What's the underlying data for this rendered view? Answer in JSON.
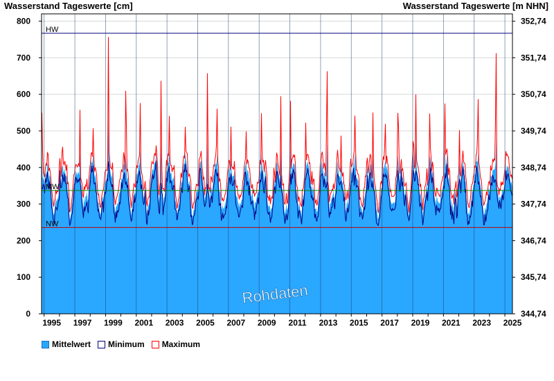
{
  "chart_data": {
    "type": "area",
    "ylabel_left": "Wasserstand Tageswerte [cm]",
    "ylabel_right": "Wasserstand Tageswerte [m NHN]",
    "ylim": [
      0,
      820
    ],
    "yticks_left": [
      "0",
      "100",
      "200",
      "300",
      "400",
      "500",
      "600",
      "700",
      "800"
    ],
    "yticks_right": [
      "344,74",
      "345,74",
      "346,74",
      "347,74",
      "348,74",
      "349,74",
      "350,74",
      "351,74",
      "352,74"
    ],
    "xticks": [
      "1995",
      "1997",
      "1999",
      "2001",
      "2003",
      "2005",
      "2007",
      "2009",
      "2011",
      "2013",
      "2015",
      "2017",
      "2019",
      "2021",
      "2023",
      "2025"
    ],
    "x_range": [
      "1994-11-01",
      "2025-06-30"
    ],
    "reference_lines": [
      {
        "label": "HW",
        "value": 767,
        "color": "#00007f"
      },
      {
        "label": "MW",
        "value": 337,
        "color": "#008000"
      },
      {
        "label": "NW",
        "value": 236,
        "color": "#c00000"
      }
    ],
    "watermark": "Rohdaten",
    "series": [
      {
        "name": "Mittelwert",
        "color": "#2aa7ff"
      },
      {
        "name": "Minimum",
        "color": "#00007f"
      },
      {
        "name": "Maximum",
        "color": "#ff0000"
      }
    ],
    "peaks": [
      {
        "x": "1994-11-15",
        "y": 575
      },
      {
        "x": "1996-03-10",
        "y": 470
      },
      {
        "x": "1997-05-01",
        "y": 570
      },
      {
        "x": "1998-03-15",
        "y": 520
      },
      {
        "x": "1999-03-10",
        "y": 765
      },
      {
        "x": "2000-05-01",
        "y": 620
      },
      {
        "x": "2001-04-01",
        "y": 590
      },
      {
        "x": "2002-08-15",
        "y": 672
      },
      {
        "x": "2003-03-01",
        "y": 550
      },
      {
        "x": "2004-03-15",
        "y": 520
      },
      {
        "x": "2005-08-23",
        "y": 688
      },
      {
        "x": "2006-04-01",
        "y": 570
      },
      {
        "x": "2007-03-01",
        "y": 520
      },
      {
        "x": "2008-03-01",
        "y": 510
      },
      {
        "x": "2009-03-01",
        "y": 560
      },
      {
        "x": "2010-06-01",
        "y": 610
      },
      {
        "x": "2011-01-15",
        "y": 600
      },
      {
        "x": "2012-01-15",
        "y": 540
      },
      {
        "x": "2013-06-02",
        "y": 685
      },
      {
        "x": "2014-05-01",
        "y": 500
      },
      {
        "x": "2015-04-01",
        "y": 555
      },
      {
        "x": "2016-06-01",
        "y": 570
      },
      {
        "x": "2017-03-15",
        "y": 530
      },
      {
        "x": "2018-01-20",
        "y": 560
      },
      {
        "x": "2019-03-15",
        "y": 610
      },
      {
        "x": "2020-02-15",
        "y": 560
      },
      {
        "x": "2021-02-01",
        "y": 590
      },
      {
        "x": "2022-01-15",
        "y": 520
      },
      {
        "x": "2023-04-01",
        "y": 600
      },
      {
        "x": "2024-06-02",
        "y": 730
      },
      {
        "x": "2025-02-01",
        "y": 460
      }
    ],
    "lows": [
      {
        "x": "1998-09-01",
        "y": 265
      },
      {
        "x": "2003-09-01",
        "y": 262
      },
      {
        "x": "2015-09-01",
        "y": 275
      },
      {
        "x": "2018-10-01",
        "y": 258
      },
      {
        "x": "2022-09-01",
        "y": 275
      }
    ]
  },
  "legend": {
    "mittelwert": "Mittelwert",
    "minimum": "Minimum",
    "maximum": "Maximum"
  }
}
